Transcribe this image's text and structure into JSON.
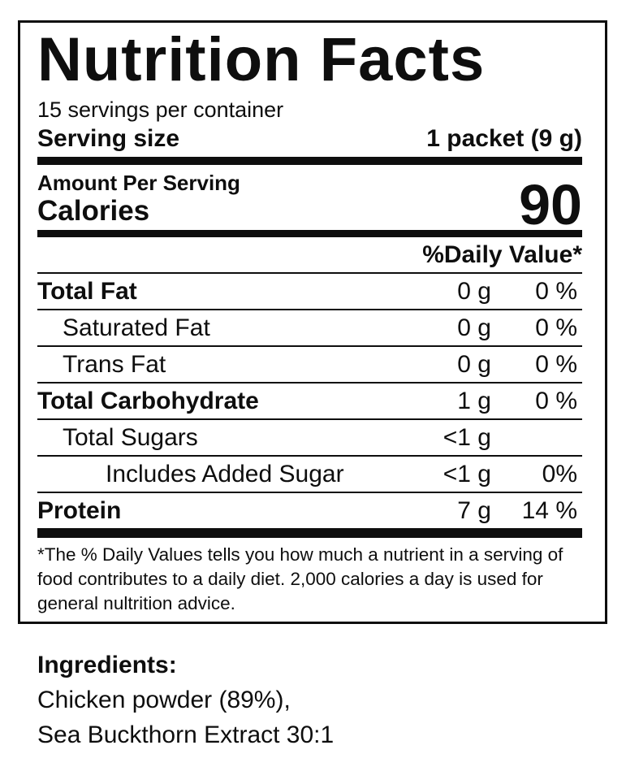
{
  "label": {
    "title": "Nutrition Facts",
    "servings_per_container": "15 servings per container",
    "serving_size_label": "Serving size",
    "serving_size_value": "1 packet (9 g)",
    "amount_per_serving": "Amount Per Serving",
    "calories_label": "Calories",
    "calories_value": "90",
    "daily_value_header": "%Daily Value*",
    "rows": [
      {
        "name": "Total Fat",
        "amount": "0 g",
        "dv": "0 %"
      },
      {
        "name": "Saturated Fat",
        "amount": "0 g",
        "dv": "0 %"
      },
      {
        "name": "Trans Fat",
        "amount": "0 g",
        "dv": "0 %"
      },
      {
        "name": "Total Carbohydrate",
        "amount": "1 g",
        "dv": "0 %"
      },
      {
        "name": "Total Sugars",
        "amount": "<1 g",
        "dv": ""
      },
      {
        "name": "Includes Added Sugar",
        "amount": "<1 g",
        "dv": "0%"
      },
      {
        "name": "Protein",
        "amount": "7 g",
        "dv": "14 %"
      }
    ],
    "footnote": "*The % Daily Values tells you how much a nutrient in a serving of food contributes to a daily diet. 2,000 calories a day is used for general nultrition advice.",
    "text_color": "#0e0e0e",
    "background_color": "#ffffff"
  },
  "ingredients": {
    "heading": "Ingredients:",
    "lines": [
      "Chicken powder (89%),",
      "Sea Buckthorn Extract 30:1"
    ]
  }
}
